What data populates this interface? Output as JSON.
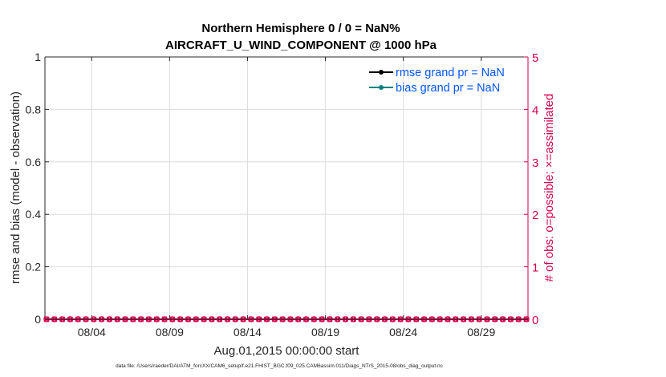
{
  "chart_data": {
    "type": "line",
    "title": [
      "Northern Hemisphere 0 / 0 = NaN%",
      "AIRCRAFT_U_WIND_COMPONENT @ 1000 hPa"
    ],
    "xlabel": "Aug.01,2015 00:00:00 start",
    "ylabel_left": "rmse and bias (model - observation)",
    "ylabel_right": "# of obs: o=possible; ×=assimilated",
    "x_tick_labels": [
      "08/04",
      "08/09",
      "08/14",
      "08/19",
      "08/24",
      "08/29"
    ],
    "x_tick_days": [
      3,
      8,
      13,
      18,
      23,
      28
    ],
    "xlim_days": [
      0,
      31
    ],
    "ylim_left": [
      0,
      1
    ],
    "y_ticks_left": [
      "0",
      "0.2",
      "0.4",
      "0.6",
      "0.8",
      "1"
    ],
    "ylim_right": [
      0,
      5
    ],
    "y_ticks_right": [
      "0",
      "1",
      "2",
      "3",
      "4",
      "5"
    ],
    "grid": true,
    "legend_position": "top-right",
    "legend": [
      {
        "label": "rmse grand pr = NaN",
        "color": "#000000"
      },
      {
        "label": "bias grand pr = NaN",
        "color": "#008080"
      }
    ],
    "obs_count_color": "#d6004f",
    "obs_possible": [
      0,
      0,
      0,
      0,
      0,
      0,
      0,
      0,
      0,
      0,
      0,
      0,
      0,
      0,
      0,
      0,
      0,
      0,
      0,
      0,
      0,
      0,
      0,
      0,
      0,
      0,
      0,
      0,
      0,
      0,
      0,
      0,
      0,
      0,
      0,
      0,
      0,
      0,
      0,
      0,
      0,
      0,
      0,
      0,
      0,
      0,
      0,
      0,
      0,
      0,
      0,
      0,
      0,
      0,
      0,
      0,
      0,
      0,
      0,
      0,
      0,
      0
    ],
    "obs_assimilated": [
      0,
      0,
      0,
      0,
      0,
      0,
      0,
      0,
      0,
      0,
      0,
      0,
      0,
      0,
      0,
      0,
      0,
      0,
      0,
      0,
      0,
      0,
      0,
      0,
      0,
      0,
      0,
      0,
      0,
      0,
      0,
      0,
      0,
      0,
      0,
      0,
      0,
      0,
      0,
      0,
      0,
      0,
      0,
      0,
      0,
      0,
      0,
      0,
      0,
      0,
      0,
      0,
      0,
      0,
      0,
      0,
      0,
      0,
      0,
      0,
      0,
      0
    ]
  },
  "footer": "data file: /Users/raeder/DAI/ATM_forcXX/CAM6_setup/f.e21.FHIST_BGC.f09_025.CAM6assim.011/Diags_NTrS_2015-08/obs_diag_output.nc"
}
